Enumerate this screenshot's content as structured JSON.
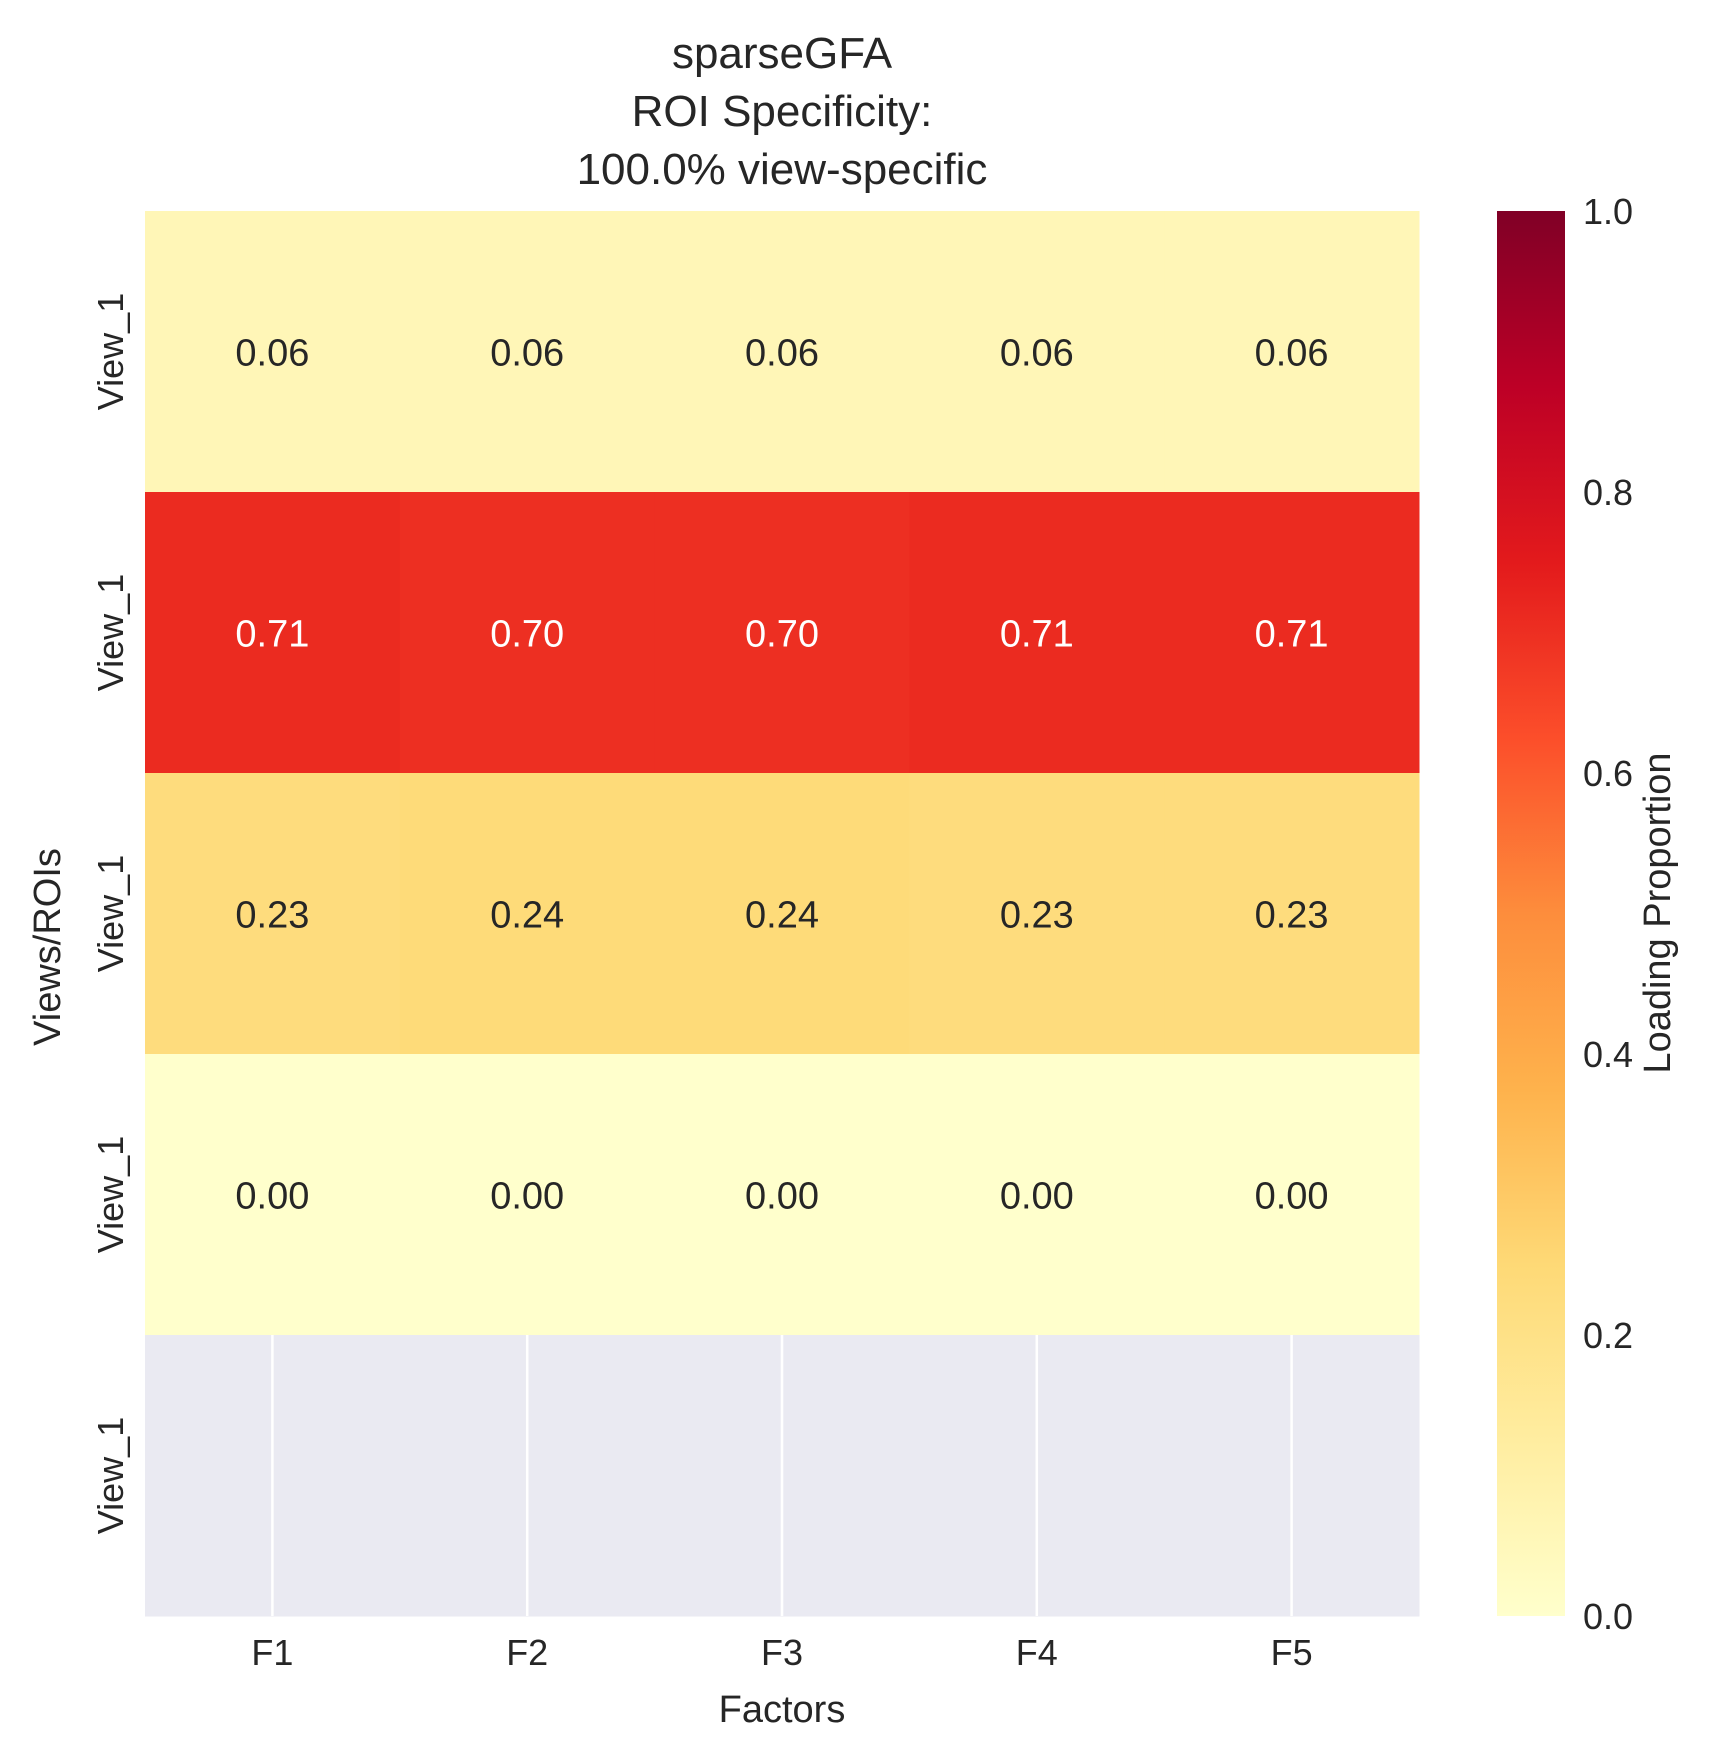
{
  "chart_data": {
    "type": "heatmap",
    "title_lines": [
      "sparseGFA",
      "ROI Specificity:",
      "100.0% view-specific"
    ],
    "xlabel": "Factors",
    "ylabel": "Views/ROIs",
    "x_categories": [
      "F1",
      "F2",
      "F3",
      "F4",
      "F5"
    ],
    "y_categories": [
      "View_1",
      "View_1",
      "View_1",
      "View_1",
      "View_1"
    ],
    "values": [
      [
        0.06,
        0.06,
        0.06,
        0.06,
        0.06
      ],
      [
        0.71,
        0.7,
        0.7,
        0.71,
        0.71
      ],
      [
        0.23,
        0.24,
        0.24,
        0.23,
        0.23
      ],
      [
        0.0,
        0.0,
        0.0,
        0.0,
        0.0
      ],
      [
        null,
        null,
        null,
        null,
        null
      ]
    ],
    "value_range": [
      0.0,
      1.0
    ],
    "colormap": "YlOrRd",
    "colorbar": {
      "label": "Loading Proportion",
      "ticks": [
        "0.0",
        "0.2",
        "0.4",
        "0.6",
        "0.8",
        "1.0"
      ],
      "tick_values": [
        0.0,
        0.2,
        0.4,
        0.6,
        0.7999999999999999,
        1.0
      ],
      "stops": [
        "#ffffcc",
        "#ffeda0",
        "#fed976",
        "#feb24c",
        "#fd8d3c",
        "#fc4e2a",
        "#e31a1c",
        "#bd0026",
        "#800026"
      ]
    },
    "missing_color": "#eaeaf2",
    "text_dark": "#262626",
    "text_light": "#ffffff"
  }
}
